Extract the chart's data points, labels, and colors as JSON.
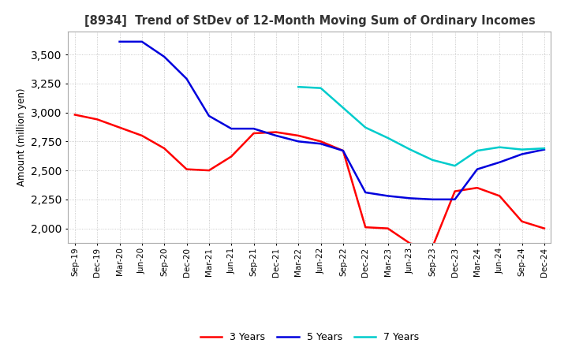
{
  "title": "[8934]  Trend of StDev of 12-Month Moving Sum of Ordinary Incomes",
  "ylabel": "Amount (million yen)",
  "ylim": [
    1875,
    3700
  ],
  "yticks": [
    2000,
    2250,
    2500,
    2750,
    3000,
    3250,
    3500
  ],
  "x_labels": [
    "Sep-19",
    "Dec-19",
    "Mar-20",
    "Jun-20",
    "Sep-20",
    "Dec-20",
    "Mar-21",
    "Jun-21",
    "Sep-21",
    "Dec-21",
    "Mar-22",
    "Jun-22",
    "Sep-22",
    "Dec-22",
    "Mar-23",
    "Jun-23",
    "Sep-23",
    "Dec-23",
    "Mar-24",
    "Jun-24",
    "Sep-24",
    "Dec-24"
  ],
  "series": {
    "3 Years": {
      "color": "#ff0000",
      "values": [
        2980,
        2940,
        2870,
        2800,
        2690,
        2510,
        2500,
        2620,
        2820,
        2830,
        2800,
        2750,
        2670,
        2010,
        2000,
        1870,
        1840,
        2320,
        2350,
        2280,
        2060,
        2000
      ]
    },
    "5 Years": {
      "color": "#0000dd",
      "values": [
        null,
        null,
        3610,
        3610,
        3480,
        3290,
        2970,
        2860,
        2860,
        2800,
        2750,
        2730,
        2670,
        2310,
        2280,
        2260,
        2250,
        2250,
        2510,
        2570,
        2640,
        2680
      ]
    },
    "7 Years": {
      "color": "#00cccc",
      "values": [
        null,
        null,
        null,
        null,
        null,
        null,
        null,
        null,
        null,
        null,
        3220,
        3210,
        3040,
        2870,
        2780,
        2680,
        2590,
        2540,
        2670,
        2700,
        2680,
        2690
      ]
    },
    "10 Years": {
      "color": "#008000",
      "values": [
        null,
        null,
        null,
        null,
        null,
        null,
        null,
        null,
        null,
        null,
        null,
        null,
        null,
        null,
        null,
        null,
        null,
        null,
        null,
        null,
        null,
        null
      ]
    }
  },
  "background_color": "#ffffff",
  "grid_color": "#bbbbbb"
}
